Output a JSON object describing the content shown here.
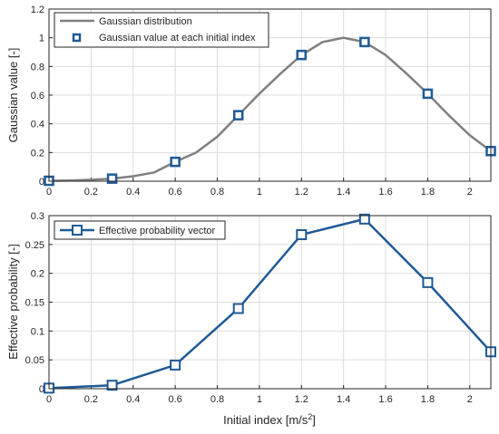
{
  "chart_data": [
    {
      "type": "line",
      "x": [
        0,
        0.3,
        0.6,
        0.9,
        1.2,
        1.5,
        1.8,
        2.1
      ],
      "series": [
        {
          "name": "Gaussian distribution",
          "style": "curve",
          "color": "#808080",
          "x": [
            0,
            0.1,
            0.2,
            0.3,
            0.4,
            0.5,
            0.6,
            0.7,
            0.8,
            0.9,
            1.0,
            1.1,
            1.2,
            1.3,
            1.4,
            1.5,
            1.6,
            1.7,
            1.8,
            1.9,
            2.0,
            2.1
          ],
          "values": [
            0.003,
            0.005,
            0.01,
            0.018,
            0.035,
            0.061,
            0.135,
            0.2,
            0.31,
            0.46,
            0.61,
            0.75,
            0.88,
            0.97,
            1.0,
            0.97,
            0.88,
            0.75,
            0.61,
            0.46,
            0.32,
            0.21
          ]
        },
        {
          "name": "Gaussian value at each initial index",
          "style": "markers",
          "color": "#1f5a96",
          "values": [
            0.003,
            0.018,
            0.135,
            0.46,
            0.88,
            0.97,
            0.61,
            0.21
          ]
        }
      ],
      "xlabel": "",
      "ylabel": "Gaussian value [-]",
      "xlim": [
        0,
        2.1
      ],
      "ylim": [
        0,
        1.2
      ],
      "xticks": [
        "0",
        "0.2",
        "0.4",
        "0.6",
        "0.8",
        "1",
        "1.2",
        "1.4",
        "1.6",
        "1.8",
        "2"
      ],
      "yticks": [
        "0",
        "0.2",
        "0.4",
        "0.6",
        "0.8",
        "1",
        "1.2"
      ],
      "grid": true,
      "legend": "top-left"
    },
    {
      "type": "line",
      "x": [
        0,
        0.3,
        0.6,
        0.9,
        1.2,
        1.5,
        1.8,
        2.1
      ],
      "series": [
        {
          "name": "Effective probability vector",
          "style": "line-markers",
          "color": "#1f5a96",
          "values": [
            0.001,
            0.006,
            0.041,
            0.139,
            0.267,
            0.294,
            0.184,
            0.064
          ]
        }
      ],
      "xlabel_main": "Initial index [m/s",
      "xlabel_sup": "2",
      "xlabel_tail": "]",
      "ylabel": "Effective probability [-]",
      "xlim": [
        0,
        2.1
      ],
      "ylim": [
        0,
        0.3
      ],
      "xticks": [
        "0",
        "0.2",
        "0.4",
        "0.6",
        "0.8",
        "1",
        "1.2",
        "1.4",
        "1.6",
        "1.8",
        "2"
      ],
      "yticks": [
        "0",
        "0.05",
        "0.1",
        "0.15",
        "0.2",
        "0.25",
        "0.3"
      ],
      "grid": true,
      "legend": "top-left"
    }
  ]
}
